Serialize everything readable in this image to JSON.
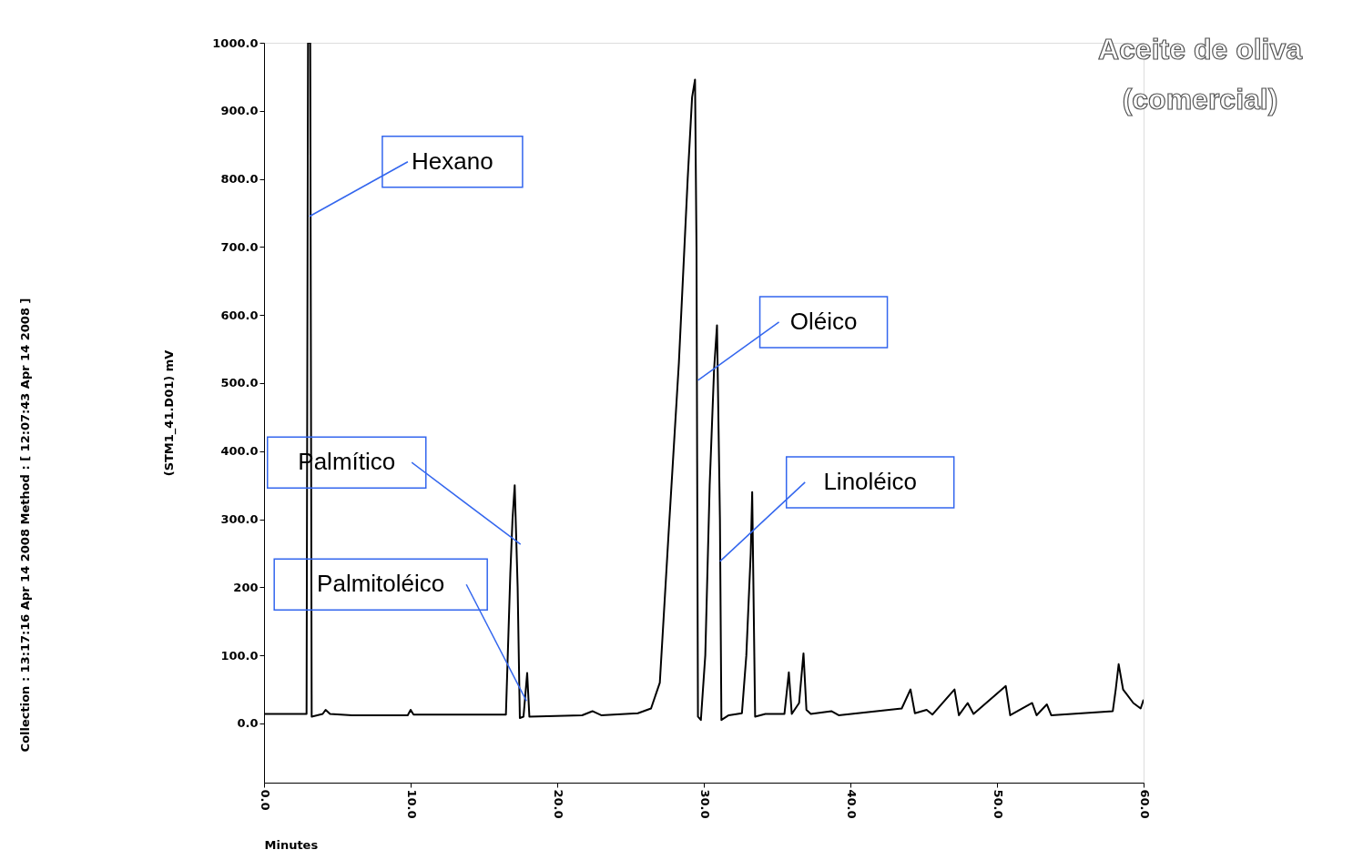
{
  "chart_data": {
    "type": "line",
    "title": "Aceite de oliva\n(comercial)",
    "xlabel": "Minutes",
    "ylabel": "(STM1_41.D01)  mV",
    "x": [
      0,
      2.9,
      3.0,
      3.15,
      3.25,
      4.0,
      4.2,
      4.5,
      6,
      9.8,
      10,
      10.2,
      16.5,
      16.8,
      16.95,
      17.1,
      17.3,
      17.45,
      17.7,
      17.95,
      18.1,
      21.7,
      22.4,
      23,
      25.5,
      26.4,
      27,
      27.6,
      28.3,
      28.9,
      29.2,
      29.4,
      29.5,
      29.6,
      29.8,
      30.1,
      30.4,
      30.7,
      30.9,
      31.1,
      31.2,
      31.7,
      32.6,
      32.9,
      33.2,
      33.3,
      33.5,
      34.2,
      35.5,
      35.8,
      36.0,
      36.5,
      36.8,
      37.0,
      37.3,
      38.7,
      39.2,
      43.5,
      44.1,
      44.4,
      45.2,
      45.6,
      47.1,
      47.4,
      48.0,
      48.4,
      50.6,
      50.9,
      52.4,
      52.7,
      53.4,
      53.7,
      57.9,
      58.1,
      58.3,
      58.6,
      59.3,
      59.8,
      60
    ],
    "series": [
      {
        "color": "#000000",
        "values": [
          14,
          14,
          1000,
          1000,
          10,
          14,
          20,
          14,
          12,
          12,
          20,
          13,
          13,
          220,
          300,
          350,
          200,
          8,
          10,
          74,
          10,
          12,
          18,
          12,
          15,
          22,
          60,
          280,
          530,
          800,
          920,
          946,
          700,
          10,
          5,
          100,
          350,
          520,
          585,
          300,
          5,
          12,
          15,
          100,
          250,
          340,
          10,
          14,
          14,
          75,
          14,
          30,
          103,
          20,
          14,
          18,
          12,
          22,
          50,
          15,
          20,
          13,
          50,
          12,
          30,
          14,
          55,
          12,
          30,
          12,
          28,
          12,
          18,
          50,
          87,
          50,
          30,
          22,
          35
        ]
      }
    ],
    "xlim": [
      0,
      60
    ],
    "ylim": [
      -87,
      1000
    ],
    "xticks": [
      {
        "value": 0,
        "label": "0.0"
      },
      {
        "value": 10,
        "label": "10.0"
      },
      {
        "value": 20,
        "label": "20.0"
      },
      {
        "value": 30,
        "label": "30.0"
      },
      {
        "value": 40,
        "label": "40.0"
      },
      {
        "value": 50,
        "label": "50.0"
      },
      {
        "value": 60,
        "label": "60.0"
      }
    ],
    "yticks": [
      {
        "value": 0,
        "label": "0.0"
      },
      {
        "value": 100,
        "label": "100.0"
      },
      200,
      {
        "value": 300,
        "label": "300.0"
      },
      {
        "value": 400,
        "label": "400.0"
      },
      {
        "value": 500,
        "label": "500.0"
      },
      {
        "value": 600,
        "label": "600.0"
      },
      {
        "value": 700,
        "label": "700.0"
      },
      {
        "value": 800,
        "label": "800.0"
      },
      {
        "value": 900,
        "label": "900.0"
      },
      {
        "value": 1000,
        "label": "1000.0"
      }
    ],
    "grid": false,
    "marker": "none",
    "line_style": "solid",
    "annotations": [
      {
        "text": "Hexano",
        "x": 3.1,
        "y": 745
      },
      {
        "text": "Palmítico",
        "x": 17.5,
        "y": 263
      },
      {
        "text": "Palmitoléico",
        "x": 17.9,
        "y": 33
      },
      {
        "text": "Oléico",
        "x": 29.6,
        "y": 504
      },
      {
        "text": "Linoléico",
        "x": 31.1,
        "y": 238
      },
      "Collection : 13:17:16 Apr 14 2008   Method :   [ 12:07:43 Apr 14 2008 ]"
    ]
  }
}
